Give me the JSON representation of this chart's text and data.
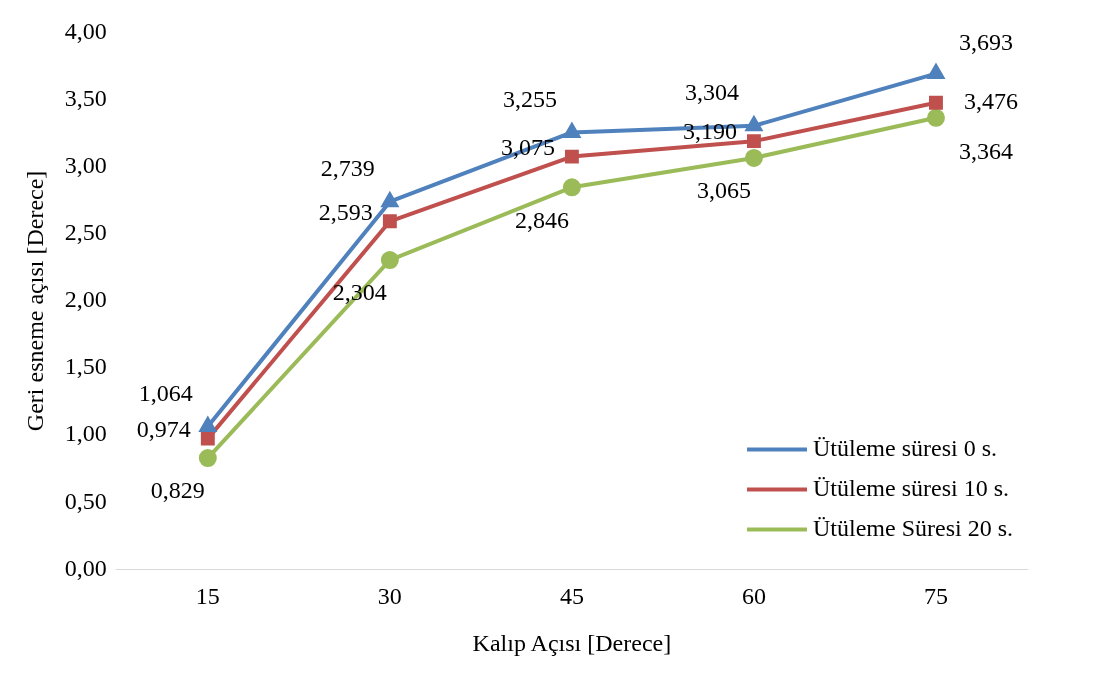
{
  "chart_data": {
    "type": "line",
    "xlabel": "Kalıp Açısı [Derece]",
    "ylabel": "Geri esneme açısı [Derece]",
    "categories": [
      "15",
      "30",
      "45",
      "60",
      "75"
    ],
    "ylim": [
      0,
      4
    ],
    "yticks": [
      {
        "value": 0,
        "label": "0,00"
      },
      {
        "value": 0.5,
        "label": "0,50"
      },
      {
        "value": 1,
        "label": "1,00"
      },
      {
        "value": 1.5,
        "label": "1,50"
      },
      {
        "value": 2,
        "label": "2,00"
      },
      {
        "value": 2.5,
        "label": "2,50"
      },
      {
        "value": 3,
        "label": "3,00"
      },
      {
        "value": 3.5,
        "label": "3,50"
      },
      {
        "value": 4,
        "label": "4,00"
      }
    ],
    "grid": false,
    "legend": "bottom right",
    "series": [
      {
        "name": "Ütüleme süresi 0 s.",
        "color": "#4f81bd",
        "marker": "triangle",
        "values": [
          1.064,
          2.739,
          3.255,
          3.304,
          3.693
        ],
        "value_labels": [
          "1,064",
          "2,739",
          "3,255",
          "3,304",
          "3,693"
        ]
      },
      {
        "name": "Ütüleme süresi 10 s.",
        "color": "#c0504d",
        "marker": "square",
        "values": [
          0.974,
          2.593,
          3.075,
          3.19,
          3.476
        ],
        "value_labels": [
          "0,974",
          "2,593",
          "3,075",
          "3,190",
          "3,476"
        ]
      },
      {
        "name": "Ütüleme Süresi 20 s.",
        "color": "#9bbb59",
        "marker": "circle",
        "values": [
          0.829,
          2.304,
          2.846,
          3.065,
          3.364
        ],
        "value_labels": [
          "0,829",
          "2,304",
          "2,846",
          "3,065",
          "3,364"
        ]
      }
    ]
  }
}
